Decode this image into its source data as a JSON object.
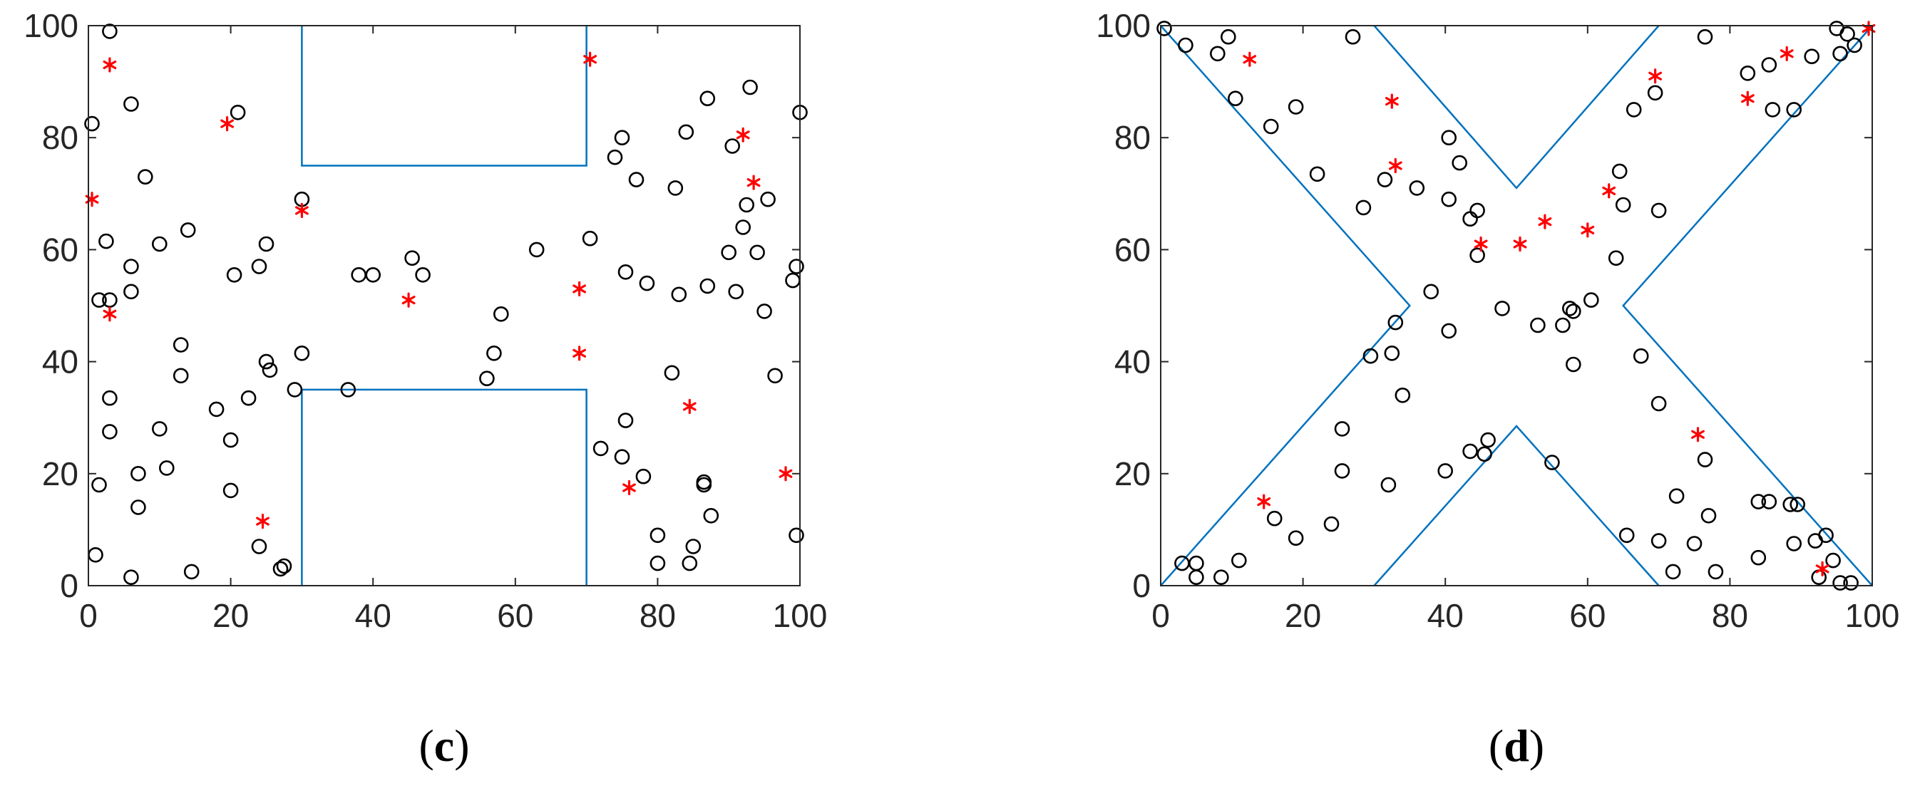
{
  "colors": {
    "axis": "#262626",
    "obstacle": "#0072BD",
    "circle_marker": "#000000",
    "star_marker": "#FF0000"
  },
  "panels": [
    {
      "label_open": "(",
      "label_letter": "c",
      "label_close": ")"
    },
    {
      "label_open": "(",
      "label_letter": "d",
      "label_close": ")"
    }
  ],
  "chart_data": [
    {
      "type": "scatter",
      "title": "",
      "xlabel": "",
      "ylabel": "",
      "xlim": [
        0,
        100
      ],
      "ylim": [
        0,
        100
      ],
      "x_ticks": [
        0,
        20,
        40,
        60,
        80,
        100
      ],
      "y_ticks": [
        0,
        20,
        40,
        60,
        80,
        100
      ],
      "x_tick_labels": [
        "0",
        "20",
        "40",
        "60",
        "80",
        "100"
      ],
      "y_tick_labels": [
        "0",
        "20",
        "40",
        "60",
        "80",
        "100"
      ],
      "grid": false,
      "legend": "none",
      "obstacles": [
        [
          [
            30,
            100
          ],
          [
            30,
            75
          ],
          [
            70,
            75
          ],
          [
            70,
            100
          ]
        ],
        [
          [
            30,
            0
          ],
          [
            30,
            35
          ],
          [
            70,
            35
          ],
          [
            70,
            0
          ]
        ]
      ],
      "series": [
        {
          "marker": "circle",
          "color": "#000000",
          "points": [
            [
              3,
              99
            ],
            [
              0.5,
              82.5
            ],
            [
              6,
              86
            ],
            [
              8,
              73
            ],
            [
              2.5,
              61.5
            ],
            [
              1.5,
              51
            ],
            [
              3,
              51
            ],
            [
              6,
              57
            ],
            [
              6,
              52.5
            ],
            [
              10,
              61
            ],
            [
              14,
              63.5
            ],
            [
              21,
              84.5
            ],
            [
              20.5,
              55.5
            ],
            [
              24,
              57
            ],
            [
              25,
              61
            ],
            [
              30,
              69
            ],
            [
              13,
              43
            ],
            [
              13,
              37.5
            ],
            [
              25,
              40
            ],
            [
              25.5,
              38.5
            ],
            [
              30,
              41.5
            ],
            [
              29,
              35
            ],
            [
              18,
              31.5
            ],
            [
              22.5,
              33.5
            ],
            [
              3,
              33.5
            ],
            [
              3,
              27.5
            ],
            [
              10,
              28
            ],
            [
              20,
              26
            ],
            [
              1.5,
              18
            ],
            [
              7,
              20
            ],
            [
              11,
              21
            ],
            [
              20,
              17
            ],
            [
              7,
              14
            ],
            [
              24,
              7
            ],
            [
              27.5,
              3.5
            ],
            [
              27,
              3
            ],
            [
              14.5,
              2.5
            ],
            [
              6,
              1.5
            ],
            [
              1,
              5.5
            ],
            [
              36.5,
              35
            ],
            [
              38,
              55.5
            ],
            [
              40,
              55.5
            ],
            [
              45.5,
              58.5
            ],
            [
              47,
              55.5
            ],
            [
              63,
              60
            ],
            [
              70.5,
              62
            ],
            [
              58,
              48.5
            ],
            [
              56,
              37
            ],
            [
              57,
              41.5
            ],
            [
              72,
              24.5
            ],
            [
              75,
              80
            ],
            [
              74,
              76.5
            ],
            [
              77,
              72.5
            ],
            [
              75.5,
              56
            ],
            [
              78.5,
              54
            ],
            [
              87,
              87
            ],
            [
              84,
              81
            ],
            [
              82.5,
              71
            ],
            [
              83,
              52
            ],
            [
              87,
              53.5
            ],
            [
              90.5,
              78.5
            ],
            [
              92.5,
              68
            ],
            [
              92,
              64
            ],
            [
              90,
              59.5
            ],
            [
              91,
              52.5
            ],
            [
              93,
              89
            ],
            [
              95.5,
              69
            ],
            [
              94,
              59.5
            ],
            [
              95,
              49
            ],
            [
              100,
              84.5
            ],
            [
              99.5,
              57
            ],
            [
              99,
              54.5
            ],
            [
              96.5,
              37.5
            ],
            [
              82,
              38
            ],
            [
              75.5,
              29.5
            ],
            [
              75,
              23
            ],
            [
              78,
              19.5
            ],
            [
              86.5,
              18.5
            ],
            [
              86.5,
              18
            ],
            [
              87.5,
              12.5
            ],
            [
              80,
              9
            ],
            [
              85,
              7
            ],
            [
              80,
              4
            ],
            [
              84.5,
              4
            ],
            [
              99.5,
              9
            ]
          ]
        },
        {
          "marker": "star",
          "color": "#FF0000",
          "points": [
            [
              3,
              93
            ],
            [
              0.5,
              69
            ],
            [
              3,
              48.5
            ],
            [
              19.5,
              82.5
            ],
            [
              30,
              67
            ],
            [
              45,
              51
            ],
            [
              69,
              53
            ],
            [
              69,
              41.5
            ],
            [
              70.5,
              94
            ],
            [
              92,
              80.5
            ],
            [
              93.5,
              72
            ],
            [
              84.5,
              32
            ],
            [
              76,
              17.5
            ],
            [
              98,
              20
            ],
            [
              24.5,
              11.5
            ]
          ]
        }
      ]
    },
    {
      "type": "scatter",
      "title": "",
      "xlabel": "",
      "ylabel": "",
      "xlim": [
        0,
        100
      ],
      "ylim": [
        0,
        100
      ],
      "x_ticks": [
        0,
        20,
        40,
        60,
        80,
        100
      ],
      "y_ticks": [
        0,
        20,
        40,
        60,
        80,
        100
      ],
      "x_tick_labels": [
        "0",
        "20",
        "40",
        "60",
        "80",
        "100"
      ],
      "y_tick_labels": [
        "0",
        "20",
        "40",
        "60",
        "80",
        "100"
      ],
      "grid": false,
      "legend": "none",
      "obstacles": [
        [
          [
            0,
            100
          ],
          [
            35,
            50
          ],
          [
            0,
            0
          ]
        ],
        [
          [
            30,
            100
          ],
          [
            50,
            71
          ],
          [
            70,
            100
          ]
        ],
        [
          [
            100,
            100
          ],
          [
            65,
            50
          ],
          [
            100,
            0
          ]
        ],
        [
          [
            30,
            0
          ],
          [
            50,
            28.5
          ],
          [
            70,
            0
          ]
        ]
      ],
      "series": [
        {
          "marker": "circle",
          "color": "#000000",
          "points": [
            [
              0.5,
              99.5
            ],
            [
              3.5,
              96.5
            ],
            [
              8,
              95
            ],
            [
              9.5,
              98
            ],
            [
              10.5,
              87
            ],
            [
              15.5,
              82
            ],
            [
              19,
              85.5
            ],
            [
              27,
              98
            ],
            [
              22,
              73.5
            ],
            [
              28.5,
              67.5
            ],
            [
              31.5,
              72.5
            ],
            [
              36,
              71
            ],
            [
              40.5,
              80
            ],
            [
              40.5,
              69
            ],
            [
              42,
              75.5
            ],
            [
              43.5,
              65.5
            ],
            [
              44.5,
              67
            ],
            [
              44.5,
              59
            ],
            [
              38,
              52.5
            ],
            [
              33,
              47
            ],
            [
              40.5,
              45.5
            ],
            [
              48,
              49.5
            ],
            [
              53,
              46.5
            ],
            [
              56.5,
              46.5
            ],
            [
              57.5,
              49.5
            ],
            [
              58,
              49
            ],
            [
              60.5,
              51
            ],
            [
              58,
              39.5
            ],
            [
              32.5,
              41.5
            ],
            [
              29.5,
              41
            ],
            [
              34,
              34
            ],
            [
              25.5,
              28
            ],
            [
              25.5,
              20.5
            ],
            [
              32,
              18
            ],
            [
              40,
              20.5
            ],
            [
              43.5,
              24
            ],
            [
              45.5,
              23.5
            ],
            [
              46,
              26
            ],
            [
              55,
              22
            ],
            [
              24,
              11
            ],
            [
              16,
              12
            ],
            [
              19,
              8.5
            ],
            [
              11,
              4.5
            ],
            [
              5,
              4
            ],
            [
              3,
              4
            ],
            [
              5,
              1.5
            ],
            [
              8.5,
              1.5
            ],
            [
              64,
              58.5
            ],
            [
              64.5,
              74
            ],
            [
              65,
              68
            ],
            [
              66.5,
              85
            ],
            [
              69.5,
              88
            ],
            [
              70,
              67
            ],
            [
              76.5,
              98
            ],
            [
              82.5,
              91.5
            ],
            [
              85.5,
              93
            ],
            [
              86,
              85
            ],
            [
              89,
              85
            ],
            [
              91.5,
              94.5
            ],
            [
              95,
              99.5
            ],
            [
              96.5,
              98.5
            ],
            [
              95.5,
              95
            ],
            [
              97.5,
              96.5
            ],
            [
              67.5,
              41
            ],
            [
              70,
              32.5
            ],
            [
              76.5,
              22.5
            ],
            [
              77,
              12.5
            ],
            [
              72.5,
              16
            ],
            [
              65.5,
              9
            ],
            [
              70,
              8
            ],
            [
              75,
              7.5
            ],
            [
              72,
              2.5
            ],
            [
              78,
              2.5
            ],
            [
              84,
              15
            ],
            [
              85.5,
              15
            ],
            [
              88.5,
              14.5
            ],
            [
              89.5,
              14.5
            ],
            [
              89,
              7.5
            ],
            [
              84,
              5
            ],
            [
              92,
              8
            ],
            [
              93.5,
              9
            ],
            [
              94.5,
              4.5
            ],
            [
              92.5,
              1.5
            ],
            [
              95.5,
              0.5
            ],
            [
              97,
              0.5
            ]
          ]
        },
        {
          "marker": "star",
          "color": "#FF0000",
          "points": [
            [
              12.5,
              94
            ],
            [
              32.5,
              86.5
            ],
            [
              33,
              75
            ],
            [
              45,
              61
            ],
            [
              50.5,
              61
            ],
            [
              54,
              65
            ],
            [
              60,
              63.5
            ],
            [
              63,
              70.5
            ],
            [
              69.5,
              91
            ],
            [
              82.5,
              87
            ],
            [
              88,
              95
            ],
            [
              99.5,
              99.5
            ],
            [
              14.5,
              15
            ],
            [
              75.5,
              27
            ],
            [
              93,
              3
            ]
          ]
        }
      ]
    }
  ]
}
